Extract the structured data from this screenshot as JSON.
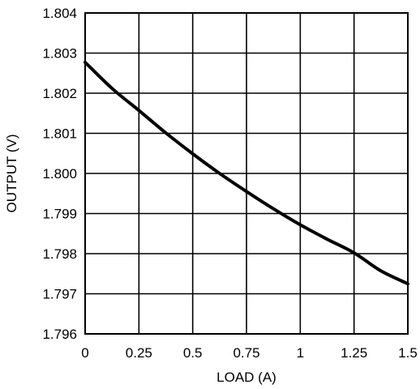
{
  "chart_data": {
    "type": "line",
    "title": "",
    "xlabel": "LOAD (A)",
    "ylabel": "OUTPUT (V)",
    "xlim": [
      0,
      1.5
    ],
    "ylim": [
      1.796,
      1.804
    ],
    "x_ticks": [
      "0",
      "0.25",
      "0.5",
      "0.75",
      "1",
      "1.25",
      "1.5"
    ],
    "y_ticks": [
      "1.804",
      "1.803",
      "1.802",
      "1.801",
      "1.800",
      "1.799",
      "1.798",
      "1.797",
      "1.796"
    ],
    "grid": true,
    "series": [
      {
        "x": [
          0,
          0.125,
          0.25,
          0.375,
          0.5,
          0.625,
          0.75,
          0.875,
          1.0,
          1.125,
          1.25,
          1.375,
          1.5
        ],
        "y": [
          1.80277,
          1.80212,
          1.80157,
          1.80101,
          1.80049,
          1.8,
          1.79955,
          1.79912,
          1.79872,
          1.79836,
          1.79802,
          1.79757,
          1.79725
        ]
      }
    ]
  }
}
